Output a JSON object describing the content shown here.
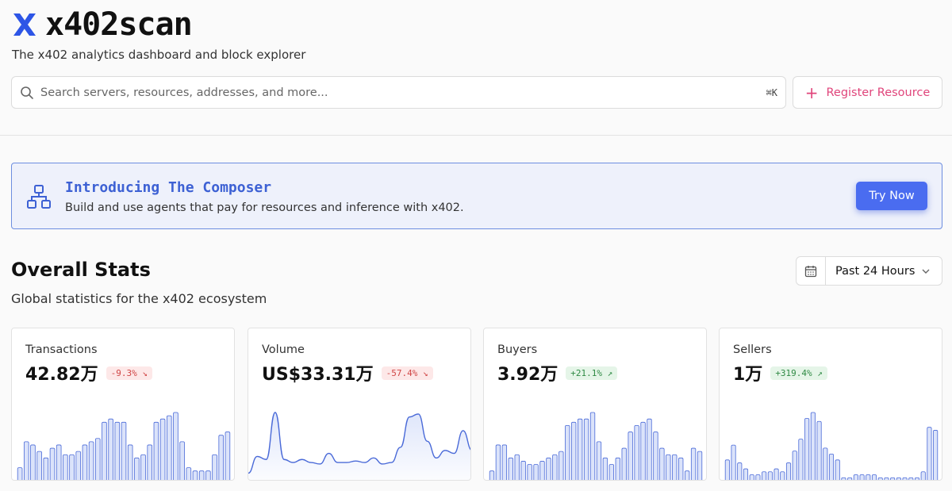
{
  "brand": {
    "name": "x402scan",
    "tagline": "The x402 analytics dashboard and block explorer"
  },
  "search": {
    "placeholder": "Search servers, resources, addresses, and more...",
    "shortcut": "⌘K"
  },
  "register": {
    "label": "Register Resource",
    "color": "#e0457b"
  },
  "banner": {
    "title": "Introducing The Composer",
    "subtitle": "Build and use agents that pay for resources and inference with x402.",
    "button": "Try Now"
  },
  "stats": {
    "title": "Overall Stats",
    "subtitle": "Global statistics for the x402 ecosystem",
    "range": "Past 24 Hours"
  },
  "cards": [
    {
      "label": "Transactions",
      "value": "42.82万",
      "change": "-9.3%",
      "trend": "down",
      "chart_type": "bar",
      "series": [
        4,
        12,
        11,
        9,
        7,
        10,
        11,
        8,
        8,
        9,
        11,
        12,
        13,
        18,
        19,
        18,
        18,
        11,
        7,
        8,
        11,
        18,
        19,
        20,
        21,
        12,
        4,
        3,
        3,
        3,
        8,
        14,
        15
      ]
    },
    {
      "label": "Volume",
      "value": "US$33.31万",
      "change": "-57.4%",
      "trend": "down",
      "chart_type": "area",
      "series": [
        5,
        16,
        14,
        45,
        14,
        12,
        14,
        12,
        11,
        18,
        12,
        12,
        13,
        12,
        15,
        11,
        12,
        22,
        42,
        44,
        26,
        15,
        20,
        18,
        33,
        20
      ]
    },
    {
      "label": "Buyers",
      "value": "3.92万",
      "change": "+21.1%",
      "trend": "up",
      "chart_type": "bar",
      "series": [
        3,
        11,
        11,
        7,
        8,
        6,
        5,
        5,
        6,
        7,
        8,
        9,
        17,
        18,
        19,
        19,
        21,
        12,
        7,
        5,
        7,
        10,
        15,
        17,
        18,
        19,
        15,
        10,
        8,
        8,
        7,
        3,
        10,
        9
      ]
    },
    {
      "label": "Sellers",
      "value": "1万",
      "change": "+319.4%",
      "trend": "up",
      "chart_type": "bar",
      "series": [
        7,
        12,
        6,
        4,
        2,
        2,
        3,
        3,
        4,
        3,
        6,
        10,
        14,
        21,
        23,
        20,
        11,
        9,
        7,
        1,
        1,
        2,
        2,
        2,
        2,
        1,
        1,
        1,
        1,
        1,
        1,
        1,
        3,
        18,
        17
      ]
    }
  ],
  "colors": {
    "accent": "#4a6cf0",
    "chart_line": "#4a6ad8",
    "chart_fill": "#dbe3fa"
  }
}
